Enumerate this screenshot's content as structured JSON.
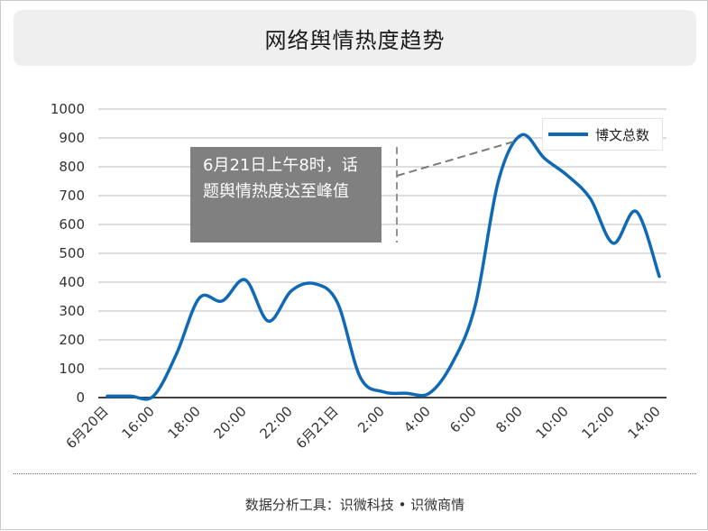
{
  "header": {
    "title": "网络舆情热度趋势"
  },
  "footer": {
    "source": "数据分析工具：识微科技 • 识微商情"
  },
  "annotation": {
    "text": "6月21日上午8时，话题舆情热度达至峰值"
  },
  "colors": {
    "line": "#0f69b5",
    "annotation_bg": "#808080",
    "grid": "#bdbdbd"
  },
  "chart_data": {
    "type": "line",
    "title": "网络舆情热度趋势",
    "xlabel": "",
    "ylabel": "",
    "ylim": [
      0,
      1000
    ],
    "yticks": [
      0,
      100,
      200,
      300,
      400,
      500,
      600,
      700,
      800,
      900,
      1000
    ],
    "xticks": [
      "6月20日",
      "16:00",
      "18:00",
      "20:00",
      "22:00",
      "6月21日",
      "2:00",
      "4:00",
      "6:00",
      "8:00",
      "10:00",
      "12:00",
      "14:00"
    ],
    "grid": true,
    "legend_position": "top-right",
    "series": [
      {
        "name": "博文总数",
        "color": "#0f69b5",
        "x": [
          "6月20日",
          "15:00",
          "16:00",
          "17:00",
          "18:00",
          "19:00",
          "20:00",
          "21:00",
          "22:00",
          "23:00",
          "6月21日",
          "1:00",
          "2:00",
          "3:00",
          "4:00",
          "5:00",
          "6:00",
          "7:00",
          "8:00",
          "9:00",
          "10:00",
          "11:00",
          "12:00",
          "13:00",
          "14:00"
        ],
        "values": [
          5,
          5,
          5,
          150,
          345,
          335,
          408,
          265,
          370,
          395,
          330,
          70,
          20,
          15,
          15,
          120,
          320,
          750,
          910,
          830,
          770,
          690,
          535,
          645,
          420
        ]
      }
    ]
  }
}
